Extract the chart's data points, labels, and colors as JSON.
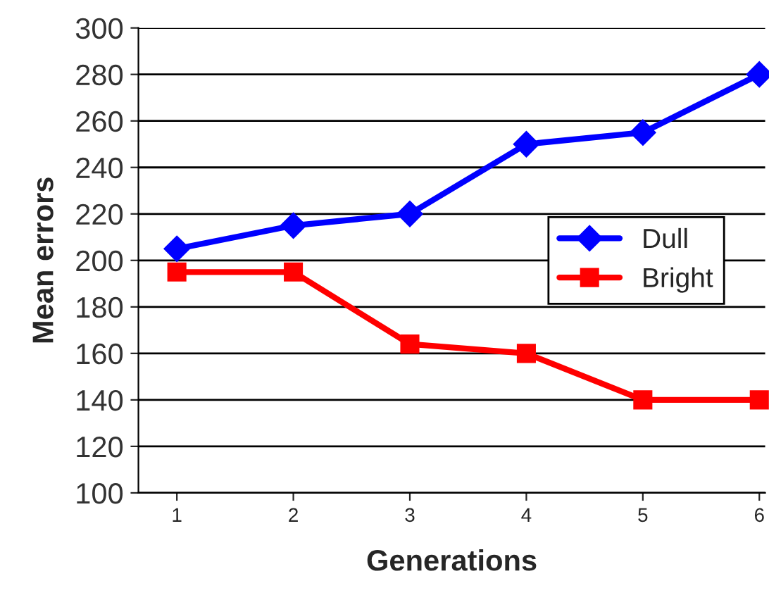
{
  "chart_data": {
    "type": "line",
    "xlabel": "Generations",
    "ylabel": "Mean errors",
    "x": [
      1,
      2,
      3,
      4,
      5,
      6
    ],
    "series": [
      {
        "name": "Dull",
        "color": "#0000ff",
        "marker": "diamond",
        "values": [
          205,
          215,
          220,
          250,
          255,
          280
        ]
      },
      {
        "name": "Bright",
        "color": "#ff0000",
        "marker": "square",
        "values": [
          195,
          195,
          164,
          160,
          140,
          140
        ]
      }
    ],
    "xlim": [
      0.67,
      6.05
    ],
    "xticks": [
      1,
      2,
      3,
      4,
      5,
      6
    ],
    "ylim": [
      100,
      300
    ],
    "yticks": [
      100,
      120,
      140,
      160,
      180,
      200,
      220,
      240,
      260,
      280,
      300
    ],
    "grid": "y",
    "legend": "center right",
    "line_style": "solid"
  }
}
